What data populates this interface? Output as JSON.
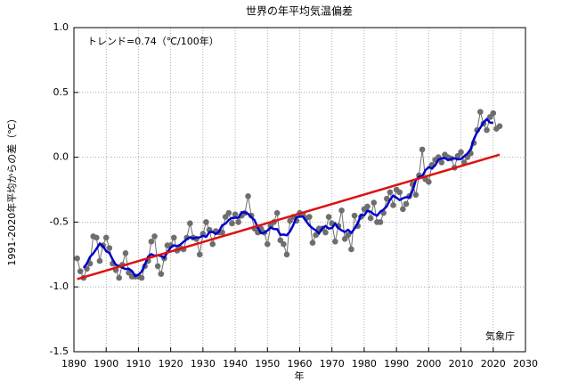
{
  "chart_data": {
    "type": "line",
    "title": "世界の年平均気温偏差",
    "annotation": "トレンド=0.74（℃/100年）",
    "source": "気象庁",
    "xlabel": "年",
    "ylabel": "1991-2020年平均からの差（℃）",
    "x": [
      1891,
      1892,
      1893,
      1894,
      1895,
      1896,
      1897,
      1898,
      1899,
      1900,
      1901,
      1902,
      1903,
      1904,
      1905,
      1906,
      1907,
      1908,
      1909,
      1910,
      1911,
      1912,
      1913,
      1914,
      1915,
      1916,
      1917,
      1918,
      1919,
      1920,
      1921,
      1922,
      1923,
      1924,
      1925,
      1926,
      1927,
      1928,
      1929,
      1930,
      1931,
      1932,
      1933,
      1934,
      1935,
      1936,
      1937,
      1938,
      1939,
      1940,
      1941,
      1942,
      1943,
      1944,
      1945,
      1946,
      1947,
      1948,
      1949,
      1950,
      1951,
      1952,
      1953,
      1954,
      1955,
      1956,
      1957,
      1958,
      1959,
      1960,
      1961,
      1962,
      1963,
      1964,
      1965,
      1966,
      1967,
      1968,
      1969,
      1970,
      1971,
      1972,
      1973,
      1974,
      1975,
      1976,
      1977,
      1978,
      1979,
      1980,
      1981,
      1982,
      1983,
      1984,
      1985,
      1986,
      1987,
      1988,
      1989,
      1990,
      1991,
      1992,
      1993,
      1994,
      1995,
      1996,
      1997,
      1998,
      1999,
      2000,
      2001,
      2002,
      2003,
      2004,
      2005,
      2006,
      2007,
      2008,
      2009,
      2010,
      2011,
      2012,
      2013,
      2014,
      2015,
      2016,
      2017,
      2018,
      2019,
      2020,
      2021,
      2022
    ],
    "series": [
      {
        "color": "#6e6e6e",
        "markers": true,
        "values": [
          -0.78,
          -0.88,
          -0.93,
          -0.86,
          -0.82,
          -0.61,
          -0.62,
          -0.8,
          -0.68,
          -0.62,
          -0.7,
          -0.82,
          -0.87,
          -0.93,
          -0.83,
          -0.74,
          -0.89,
          -0.92,
          -0.92,
          -0.92,
          -0.93,
          -0.84,
          -0.8,
          -0.65,
          -0.61,
          -0.84,
          -0.9,
          -0.78,
          -0.68,
          -0.68,
          -0.62,
          -0.72,
          -0.7,
          -0.71,
          -0.62,
          -0.51,
          -0.62,
          -0.63,
          -0.75,
          -0.59,
          -0.5,
          -0.56,
          -0.67,
          -0.57,
          -0.58,
          -0.58,
          -0.46,
          -0.43,
          -0.51,
          -0.44,
          -0.5,
          -0.45,
          -0.43,
          -0.3,
          -0.45,
          -0.55,
          -0.58,
          -0.55,
          -0.58,
          -0.67,
          -0.53,
          -0.5,
          -0.43,
          -0.64,
          -0.67,
          -0.75,
          -0.49,
          -0.46,
          -0.49,
          -0.43,
          -0.44,
          -0.47,
          -0.46,
          -0.66,
          -0.6,
          -0.55,
          -0.55,
          -0.58,
          -0.46,
          -0.51,
          -0.65,
          -0.53,
          -0.41,
          -0.63,
          -0.6,
          -0.71,
          -0.45,
          -0.53,
          -0.46,
          -0.4,
          -0.38,
          -0.47,
          -0.35,
          -0.5,
          -0.5,
          -0.43,
          -0.32,
          -0.27,
          -0.37,
          -0.25,
          -0.27,
          -0.4,
          -0.36,
          -0.3,
          -0.21,
          -0.29,
          -0.14,
          0.06,
          -0.17,
          -0.19,
          -0.06,
          -0.02,
          0.0,
          -0.04,
          0.02,
          0.0,
          -0.01,
          -0.08,
          0.01,
          0.04,
          -0.04,
          0.0,
          0.03,
          0.11,
          0.21,
          0.35,
          0.26,
          0.21,
          0.31,
          0.34,
          0.22,
          0.24
        ]
      },
      {
        "color": "#0000cc",
        "markers": false,
        "values": [
          null,
          null,
          -0.854,
          -0.82,
          -0.768,
          -0.742,
          -0.706,
          -0.666,
          -0.684,
          -0.724,
          -0.738,
          -0.788,
          -0.83,
          -0.838,
          -0.852,
          -0.862,
          -0.86,
          -0.878,
          -0.916,
          -0.906,
          -0.882,
          -0.828,
          -0.766,
          -0.748,
          -0.76,
          -0.756,
          -0.762,
          -0.776,
          -0.732,
          -0.696,
          -0.68,
          -0.686,
          -0.674,
          -0.652,
          -0.632,
          -0.618,
          -0.626,
          -0.62,
          -0.618,
          -0.606,
          -0.614,
          -0.578,
          -0.576,
          -0.592,
          -0.572,
          -0.524,
          -0.512,
          -0.484,
          -0.468,
          -0.466,
          -0.466,
          -0.424,
          -0.426,
          -0.436,
          -0.462,
          -0.486,
          -0.542,
          -0.586,
          -0.582,
          -0.566,
          -0.542,
          -0.554,
          -0.554,
          -0.598,
          -0.596,
          -0.602,
          -0.572,
          -0.524,
          -0.462,
          -0.458,
          -0.458,
          -0.492,
          -0.526,
          -0.548,
          -0.564,
          -0.588,
          -0.548,
          -0.53,
          -0.55,
          -0.546,
          -0.512,
          -0.546,
          -0.564,
          -0.576,
          -0.56,
          -0.584,
          -0.55,
          -0.51,
          -0.444,
          -0.448,
          -0.412,
          -0.42,
          -0.44,
          -0.45,
          -0.42,
          -0.404,
          -0.378,
          -0.328,
          -0.296,
          -0.312,
          -0.33,
          -0.316,
          -0.308,
          -0.312,
          -0.26,
          -0.176,
          -0.15,
          -0.146,
          -0.1,
          -0.076,
          -0.088,
          -0.062,
          -0.02,
          -0.008,
          -0.006,
          -0.022,
          -0.012,
          -0.008,
          -0.016,
          -0.014,
          0.008,
          0.028,
          0.062,
          0.14,
          0.192,
          0.228,
          0.268,
          0.294,
          0.268,
          0.264,
          null,
          null
        ]
      }
    ],
    "trend": {
      "color": "#dd1111",
      "x": [
        1891,
        2022
      ],
      "values": [
        -0.94,
        0.02
      ]
    },
    "xlim": [
      1890,
      2030
    ],
    "xticks": [
      1890,
      1900,
      1910,
      1920,
      1930,
      1940,
      1950,
      1960,
      1970,
      1980,
      1990,
      2000,
      2010,
      2020,
      2030
    ],
    "ylim": [
      -1.5,
      1.0
    ],
    "yticks": [
      {
        "value": 1,
        "label": "1.0"
      },
      0.5,
      {
        "value": 0,
        "label": "0.0"
      },
      -0.5,
      {
        "value": -1,
        "label": "-1.0"
      },
      -1.5
    ],
    "grid": true
  }
}
